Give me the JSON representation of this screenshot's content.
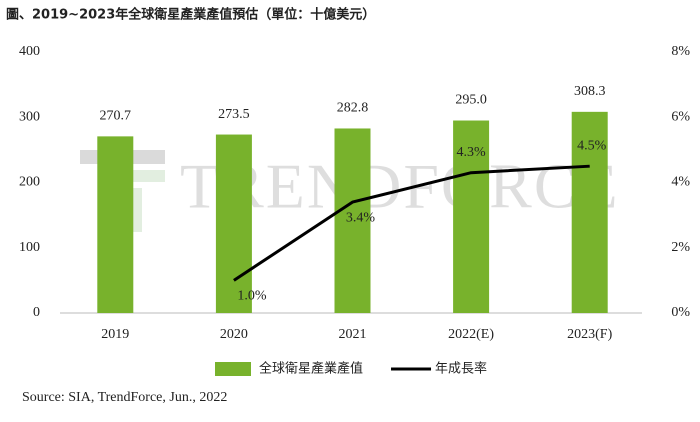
{
  "chart_data": {
    "type": "bar",
    "title": "圖、2019~2023年全球衛星產業產值預估（單位：十億美元）",
    "categories": [
      "2019",
      "2020",
      "2021",
      "2022(E)",
      "2023(F)"
    ],
    "series": [
      {
        "name": "全球衛星產業產值",
        "type": "bar",
        "color": "#78b22c",
        "values": [
          270.7,
          273.5,
          282.8,
          295.0,
          308.3
        ],
        "value_labels": [
          "270.7",
          "273.5",
          "282.8",
          "295.0",
          "308.3"
        ]
      },
      {
        "name": "年成長率",
        "type": "line",
        "axis": "y2",
        "color": "#000000",
        "values": [
          null,
          1.0,
          3.4,
          4.3,
          4.5
        ],
        "value_labels": [
          null,
          "1.0%",
          "3.4%",
          "4.3%",
          "4.5%"
        ]
      }
    ],
    "ylim": [
      0,
      400
    ],
    "yticks": [
      0,
      100,
      200,
      300,
      400
    ],
    "y2lim": [
      0,
      8
    ],
    "y2ticks": [
      {
        "value": 0,
        "label": "0%"
      },
      {
        "value": 2,
        "label": "2%"
      },
      {
        "value": 4,
        "label": "4%"
      },
      {
        "value": 6,
        "label": "6%"
      },
      {
        "value": 8,
        "label": "8%"
      }
    ],
    "grid": false,
    "legend": "bottom",
    "watermark": "TRENDFORCE",
    "source": "Source: SIA, TrendForce, Jun., 2022"
  }
}
